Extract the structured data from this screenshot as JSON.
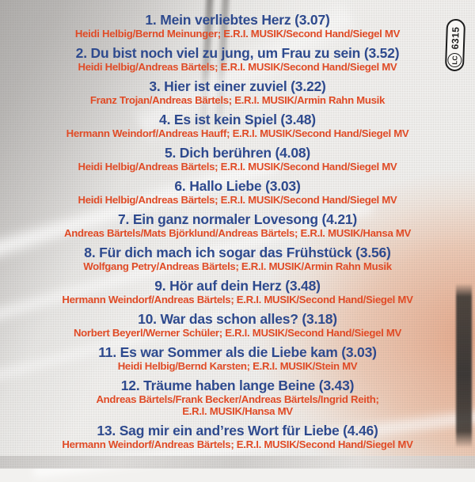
{
  "colors": {
    "title": "#2e4a8e",
    "credits": "#e04b26",
    "badge_ink": "#1c1c1c"
  },
  "label_code": {
    "lc": "LC",
    "number": "6315"
  },
  "tracks": [
    {
      "title": "1. Mein verliebtes Herz (3.07)",
      "credits": [
        "Heidi Helbig/Bernd Meinunger; E.R.I. MUSIK/Second Hand/Siegel MV"
      ]
    },
    {
      "title": "2. Du bist noch viel zu jung, um Frau zu sein (3.52)",
      "credits": [
        "Heidi Helbig/Andreas Bärtels; E.R.I. MUSIK/Second Hand/Siegel MV"
      ]
    },
    {
      "title": "3. Hier ist einer zuviel (3.22)",
      "credits": [
        "Franz Trojan/Andreas Bärtels; E.R.I. MUSIK/Armin Rahn Musik"
      ]
    },
    {
      "title": "4. Es ist kein Spiel (3.48)",
      "credits": [
        "Hermann Weindorf/Andreas Hauff; E.R.I. MUSIK/Second Hand/Siegel MV"
      ]
    },
    {
      "title": "5. Dich berühren (4.08)",
      "credits": [
        "Heidi Helbig/Andreas Bärtels; E.R.I. MUSIK/Second Hand/Siegel MV"
      ]
    },
    {
      "title": "6. Hallo Liebe (3.03)",
      "credits": [
        "Heidi Helbig/Andreas Bärtels; E.R.I. MUSIK/Second Hand/Siegel MV"
      ]
    },
    {
      "title": "7. Ein ganz normaler Lovesong (4.21)",
      "credits": [
        "Andreas Bärtels/Mats Björklund/Andreas Bärtels; E.R.I. MUSIK/Hansa MV"
      ]
    },
    {
      "title": "8. Für dich mach ich sogar das Frühstück (3.56)",
      "credits": [
        "Wolfgang Petry/Andreas Bärtels; E.R.I. MUSIK/Armin Rahn Musik"
      ]
    },
    {
      "title": "9. Hör auf dein Herz (3.48)",
      "credits": [
        "Hermann Weindorf/Andreas Bärtels; E.R.I. MUSIK/Second Hand/Siegel MV"
      ]
    },
    {
      "title": "10. War das schon alles? (3.18)",
      "credits": [
        "Norbert Beyerl/Werner Schüler; E.R.I. MUSIK/Second Hand/Siegel MV"
      ]
    },
    {
      "title": "11. Es war Sommer als die Liebe kam (3.03)",
      "credits": [
        "Heidi Helbig/Bernd Karsten; E.R.I. MUSIK/Stein MV"
      ]
    },
    {
      "title": "12. Träume haben lange Beine (3.43)",
      "credits": [
        "Andreas Bärtels/Frank Becker/Andreas Bärtels/Ingrid Reith;",
        "E.R.I. MUSIK/Hansa MV"
      ]
    },
    {
      "title": "13. Sag mir ein and’res Wort für Liebe (4.46)",
      "credits": [
        "Hermann Weindorf/Andreas Bärtels; E.R.I. MUSIK/Second Hand/Siegel MV"
      ]
    }
  ]
}
